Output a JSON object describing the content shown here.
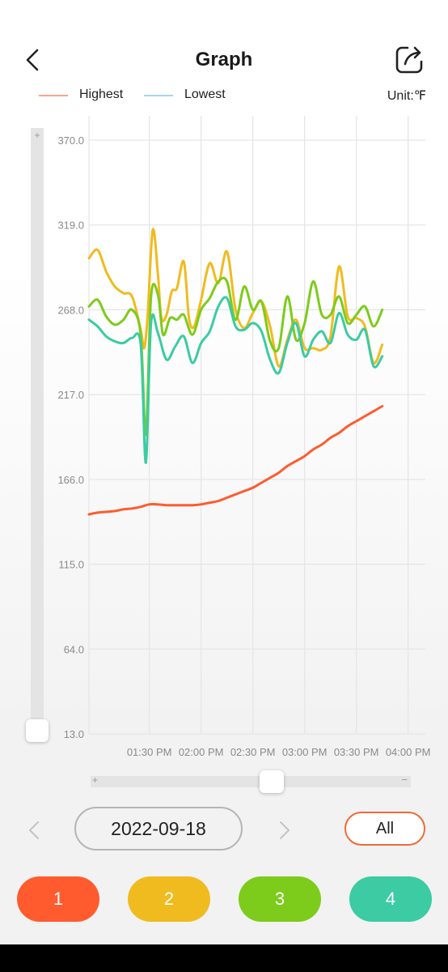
{
  "header": {
    "title": "Graph"
  },
  "legend": {
    "highest": "Highest",
    "lowest": "Lowest",
    "unit": "Unit:℉"
  },
  "date_nav": {
    "date": "2022-09-18",
    "all_label": "All"
  },
  "channels": [
    {
      "label": "1",
      "color": "#ff5b2e"
    },
    {
      "label": "2",
      "color": "#f0bb1e"
    },
    {
      "label": "3",
      "color": "#7dcb1b"
    },
    {
      "label": "4",
      "color": "#3ccba2"
    }
  ],
  "colors": {
    "highest": "#f7a58c",
    "lowest": "#a8d4ef",
    "accent": "#ef6a35"
  },
  "chart_data": {
    "type": "line",
    "ylim": [
      13.0,
      370.0
    ],
    "xlim": [
      "12:55 PM",
      "04:10 PM"
    ],
    "y_ticks": [
      "370.0",
      "319.0",
      "268.0",
      "217.0",
      "166.0",
      "115.0",
      "64.0",
      "13.0"
    ],
    "x_ticks": [
      "01:30 PM",
      "02:00 PM",
      "02:30 PM",
      "03:00 PM",
      "03:30 PM",
      "04:00 PM"
    ],
    "grid": true,
    "series": [
      {
        "color": "#ff5b2e",
        "points": [
          [
            "12:55 PM",
            145
          ],
          [
            "01:00 PM",
            146
          ],
          [
            "01:05 PM",
            146.5
          ],
          [
            "01:10 PM",
            147
          ],
          [
            "01:15 PM",
            148
          ],
          [
            "01:20 PM",
            148.5
          ],
          [
            "01:25 PM",
            149.5
          ],
          [
            "01:30 PM",
            151
          ],
          [
            "01:35 PM",
            151
          ],
          [
            "01:40 PM",
            150.5
          ],
          [
            "01:45 PM",
            150.5
          ],
          [
            "01:50 PM",
            150.5
          ],
          [
            "01:55 PM",
            150.5
          ],
          [
            "02:00 PM",
            151
          ],
          [
            "02:05 PM",
            152
          ],
          [
            "02:10 PM",
            153
          ],
          [
            "02:15 PM",
            155
          ],
          [
            "02:20 PM",
            157
          ],
          [
            "02:25 PM",
            159
          ],
          [
            "02:30 PM",
            161
          ],
          [
            "02:35 PM",
            164
          ],
          [
            "02:40 PM",
            167
          ],
          [
            "02:45 PM",
            170
          ],
          [
            "02:50 PM",
            174
          ],
          [
            "02:55 PM",
            177
          ],
          [
            "03:00 PM",
            180
          ],
          [
            "03:05 PM",
            184
          ],
          [
            "03:10 PM",
            187
          ],
          [
            "03:15 PM",
            191
          ],
          [
            "03:20 PM",
            194
          ],
          [
            "03:25 PM",
            198
          ],
          [
            "03:30 PM",
            201
          ],
          [
            "03:35 PM",
            204
          ],
          [
            "03:40 PM",
            207
          ],
          [
            "03:45 PM",
            210
          ]
        ]
      },
      {
        "color": "#f0bb1e",
        "points": [
          [
            "12:55 PM",
            299
          ],
          [
            "01:00 PM",
            304
          ],
          [
            "01:05 PM",
            291
          ],
          [
            "01:10 PM",
            282
          ],
          [
            "01:15 PM",
            278
          ],
          [
            "01:20 PM",
            276
          ],
          [
            "01:25 PM",
            256
          ],
          [
            "01:27 PM",
            245
          ],
          [
            "01:29 PM",
            264
          ],
          [
            "01:32 PM",
            316
          ],
          [
            "01:35 PM",
            289
          ],
          [
            "01:37 PM",
            263
          ],
          [
            "01:40 PM",
            265
          ],
          [
            "01:43 PM",
            279
          ],
          [
            "01:46 PM",
            281
          ],
          [
            "01:50 PM",
            297
          ],
          [
            "01:53 PM",
            263
          ],
          [
            "01:56 PM",
            258
          ],
          [
            "02:00 PM",
            274
          ],
          [
            "02:05 PM",
            296
          ],
          [
            "02:10 PM",
            284
          ],
          [
            "02:15 PM",
            303
          ],
          [
            "02:20 PM",
            268
          ],
          [
            "02:25 PM",
            257
          ],
          [
            "02:30 PM",
            266
          ],
          [
            "02:35 PM",
            273
          ],
          [
            "02:40 PM",
            258
          ],
          [
            "02:45 PM",
            234
          ],
          [
            "02:50 PM",
            250
          ],
          [
            "02:55 PM",
            262
          ],
          [
            "03:00 PM",
            245
          ],
          [
            "03:05 PM",
            245
          ],
          [
            "03:10 PM",
            244
          ],
          [
            "03:15 PM",
            252
          ],
          [
            "03:20 PM",
            294
          ],
          [
            "03:25 PM",
            264
          ],
          [
            "03:30 PM",
            263
          ],
          [
            "03:35 PM",
            258
          ],
          [
            "03:40 PM",
            236
          ],
          [
            "03:45 PM",
            247
          ]
        ]
      },
      {
        "color": "#7dcb1b",
        "points": [
          [
            "12:55 PM",
            270
          ],
          [
            "01:00 PM",
            274
          ],
          [
            "01:05 PM",
            264
          ],
          [
            "01:10 PM",
            259
          ],
          [
            "01:15 PM",
            262
          ],
          [
            "01:20 PM",
            268
          ],
          [
            "01:25 PM",
            253
          ],
          [
            "01:28 PM",
            193
          ],
          [
            "01:31 PM",
            276
          ],
          [
            "01:35 PM",
            277
          ],
          [
            "01:38 PM",
            253
          ],
          [
            "01:42 PM",
            263
          ],
          [
            "01:46 PM",
            262
          ],
          [
            "01:50 PM",
            265
          ],
          [
            "01:55 PM",
            253
          ],
          [
            "02:00 PM",
            268
          ],
          [
            "02:05 PM",
            275
          ],
          [
            "02:10 PM",
            285
          ],
          [
            "02:15 PM",
            285
          ],
          [
            "02:20 PM",
            262
          ],
          [
            "02:25 PM",
            282
          ],
          [
            "02:30 PM",
            268
          ],
          [
            "02:35 PM",
            273
          ],
          [
            "02:40 PM",
            249
          ],
          [
            "02:45 PM",
            245
          ],
          [
            "02:50 PM",
            276
          ],
          [
            "02:55 PM",
            250
          ],
          [
            "03:00 PM",
            260
          ],
          [
            "03:05 PM",
            285
          ],
          [
            "03:10 PM",
            265
          ],
          [
            "03:15 PM",
            265
          ],
          [
            "03:20 PM",
            276
          ],
          [
            "03:25 PM",
            260
          ],
          [
            "03:30 PM",
            265
          ],
          [
            "03:35 PM",
            270
          ],
          [
            "03:40 PM",
            258
          ],
          [
            "03:45 PM",
            268
          ]
        ]
      },
      {
        "color": "#3ccba2",
        "points": [
          [
            "12:55 PM",
            262
          ],
          [
            "01:00 PM",
            258
          ],
          [
            "01:05 PM",
            252
          ],
          [
            "01:10 PM",
            249
          ],
          [
            "01:15 PM",
            248
          ],
          [
            "01:20 PM",
            251
          ],
          [
            "01:25 PM",
            247
          ],
          [
            "01:28 PM",
            176
          ],
          [
            "01:31 PM",
            260
          ],
          [
            "01:35 PM",
            254
          ],
          [
            "01:40 PM",
            238
          ],
          [
            "01:45 PM",
            246
          ],
          [
            "01:50 PM",
            252
          ],
          [
            "01:55 PM",
            236
          ],
          [
            "02:00 PM",
            248
          ],
          [
            "02:05 PM",
            255
          ],
          [
            "02:10 PM",
            270
          ],
          [
            "02:15 PM",
            275
          ],
          [
            "02:20 PM",
            258
          ],
          [
            "02:25 PM",
            256
          ],
          [
            "02:30 PM",
            260
          ],
          [
            "02:35 PM",
            255
          ],
          [
            "02:40 PM",
            238
          ],
          [
            "02:45 PM",
            230
          ],
          [
            "02:50 PM",
            248
          ],
          [
            "02:55 PM",
            260
          ],
          [
            "03:00 PM",
            240
          ],
          [
            "03:05 PM",
            250
          ],
          [
            "03:10 PM",
            255
          ],
          [
            "03:15 PM",
            248
          ],
          [
            "03:20 PM",
            266
          ],
          [
            "03:25 PM",
            253
          ],
          [
            "03:30 PM",
            250
          ],
          [
            "03:35 PM",
            256
          ],
          [
            "03:40 PM",
            234
          ],
          [
            "03:45 PM",
            240
          ]
        ]
      }
    ]
  }
}
